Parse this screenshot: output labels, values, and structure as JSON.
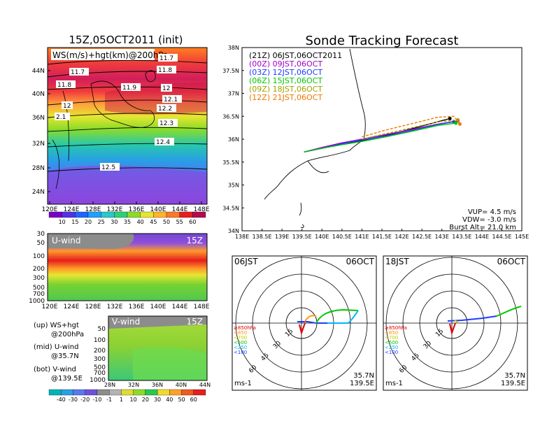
{
  "left_title": "15Z,05OCT2011 (init)",
  "main_title": "Sonde Tracking Forecast",
  "map_panel": {
    "label": "WS(m/s)+hgt(km)@200hPa",
    "lat_ticks": [
      "44N",
      "40N",
      "36N",
      "32N",
      "28N",
      "24N"
    ],
    "lon_ticks": [
      "120E",
      "124E",
      "128E",
      "132E",
      "136E",
      "140E",
      "144E",
      "148E"
    ],
    "contour_labels": [
      "11.7",
      "11.7",
      "11.8",
      "11.8",
      "11.9",
      "12",
      "12",
      "12.1",
      "12.2",
      "12.3",
      "12.4",
      "12.5",
      "2.1"
    ]
  },
  "ws_colorbar": {
    "ticks": [
      "10",
      "15",
      "20",
      "25",
      "30",
      "35",
      "40",
      "45",
      "50",
      "55",
      "60"
    ]
  },
  "u_panel": {
    "label": "U-wind",
    "time": "15Z",
    "p_ticks": [
      "30",
      "50",
      "100",
      "200",
      "300",
      "500",
      "700",
      "1000"
    ],
    "lon_ticks": [
      "120E",
      "124E",
      "128E",
      "132E",
      "136E",
      "140E",
      "144E",
      "148E"
    ]
  },
  "v_panel": {
    "label": "V-wind",
    "time": "15Z",
    "p_ticks": [
      "50",
      "100",
      "200",
      "300",
      "500",
      "700",
      "1000"
    ],
    "lat_ticks": [
      "28N",
      "32N",
      "36N",
      "40N",
      "44N"
    ]
  },
  "legend_notes": [
    {
      "line1": "(up) WS+hgt",
      "line2": "@200hPa"
    },
    {
      "line1": "(mid) U-wind",
      "line2": "@35.7N"
    },
    {
      "line1": "(bot) V-wind",
      "line2": "@139.5E"
    }
  ],
  "wind_colorbar": {
    "ticks": [
      "-40",
      "-30",
      "-20",
      "-10",
      "-1",
      "1",
      "10",
      "20",
      "30",
      "40",
      "50",
      "60"
    ]
  },
  "colors": {
    "track_21z": "#000000",
    "track_00z": "#a000c8",
    "track_03z": "#1e3cff",
    "track_06z": "#00c800",
    "track_09z": "#a0a000",
    "track_12z": "#f07800"
  },
  "chart_data": {
    "type": "line",
    "title": "Sonde Tracking Forecast",
    "xlim": [
      138,
      145
    ],
    "ylim": [
      34,
      38
    ],
    "x_ticks": [
      "138E",
      "138.5E",
      "139E",
      "139.5E",
      "140E",
      "140.5E",
      "141E",
      "141.5E",
      "142E",
      "142.5E",
      "143E",
      "143.5E",
      "144E",
      "144.5E",
      "145E"
    ],
    "y_ticks": [
      "38N",
      "37.5N",
      "37N",
      "36.5N",
      "36N",
      "35.5N",
      "35N",
      "34.5N",
      "34N"
    ],
    "series": [
      {
        "name": "(21Z)  06JST,06OCT2011",
        "color": "#000000",
        "points": [
          [
            139.55,
            35.72
          ],
          [
            140.0,
            35.8
          ],
          [
            140.5,
            35.9
          ],
          [
            141.0,
            35.97
          ],
          [
            141.6,
            36.08
          ],
          [
            142.3,
            36.24
          ],
          [
            142.9,
            36.38
          ],
          [
            143.2,
            36.45
          ]
        ]
      },
      {
        "name": "(00Z)  09JST,06OCT",
        "color": "#a000c8",
        "points": [
          [
            139.55,
            35.72
          ],
          [
            140.0,
            35.82
          ],
          [
            140.5,
            35.92
          ],
          [
            141.0,
            36.0
          ],
          [
            141.6,
            36.1
          ],
          [
            142.3,
            36.22
          ],
          [
            142.9,
            36.33
          ],
          [
            143.4,
            36.4
          ]
        ]
      },
      {
        "name": "(03Z)  12JST,06OCT",
        "color": "#1e3cff",
        "points": [
          [
            139.55,
            35.72
          ],
          [
            140.0,
            35.8
          ],
          [
            140.5,
            35.9
          ],
          [
            141.0,
            35.98
          ],
          [
            141.6,
            36.07
          ],
          [
            142.3,
            36.2
          ],
          [
            142.9,
            36.32
          ],
          [
            143.3,
            36.38
          ]
        ]
      },
      {
        "name": "(06Z)  15JST,06OCT",
        "color": "#00c800",
        "points": [
          [
            139.55,
            35.72
          ],
          [
            140.0,
            35.8
          ],
          [
            140.5,
            35.88
          ],
          [
            141.0,
            35.95
          ],
          [
            141.6,
            36.05
          ],
          [
            142.3,
            36.18
          ],
          [
            142.9,
            36.3
          ],
          [
            143.35,
            36.35
          ]
        ]
      },
      {
        "name": "(09Z)  18JST,06OCT",
        "color": "#a0a000",
        "points": [
          [
            141.0,
            36.0
          ],
          [
            141.6,
            36.12
          ],
          [
            142.3,
            36.26
          ],
          [
            142.9,
            36.38
          ],
          [
            143.4,
            36.42
          ]
        ]
      },
      {
        "name": "(12Z)  21JST,06OCT",
        "color": "#f07800",
        "points": [
          [
            141.0,
            36.05
          ],
          [
            141.6,
            36.2
          ],
          [
            142.3,
            36.35
          ],
          [
            142.9,
            36.48
          ],
          [
            143.3,
            36.5
          ],
          [
            143.45,
            36.33
          ]
        ]
      }
    ],
    "notes": [
      "VUP=  4.5  m/s",
      "VDW=  -3.0  m/s",
      "Burst Alt=  21.0  km"
    ]
  },
  "hodo_left": {
    "time": "06JST",
    "date": "06OCT",
    "lat": "35.7N",
    "lon": "139.5E",
    "unit": "ms-1",
    "ring_labels": [
      "15",
      "30",
      "45",
      "60"
    ]
  },
  "hodo_right": {
    "time": "18JST",
    "date": "06OCT",
    "lat": "35.7N",
    "lon": "139.5E",
    "unit": "ms-1",
    "ring_labels": [
      "15",
      "30",
      "45",
      "60"
    ]
  },
  "hodo_legend": [
    "≥850hPa",
    "<850",
    "<700",
    "<500",
    "<250",
    "<100"
  ],
  "hodo_legend_colors": [
    "#e00000",
    "#ff9600",
    "#c8c800",
    "#00c800",
    "#00b4ff",
    "#1e3cff"
  ]
}
